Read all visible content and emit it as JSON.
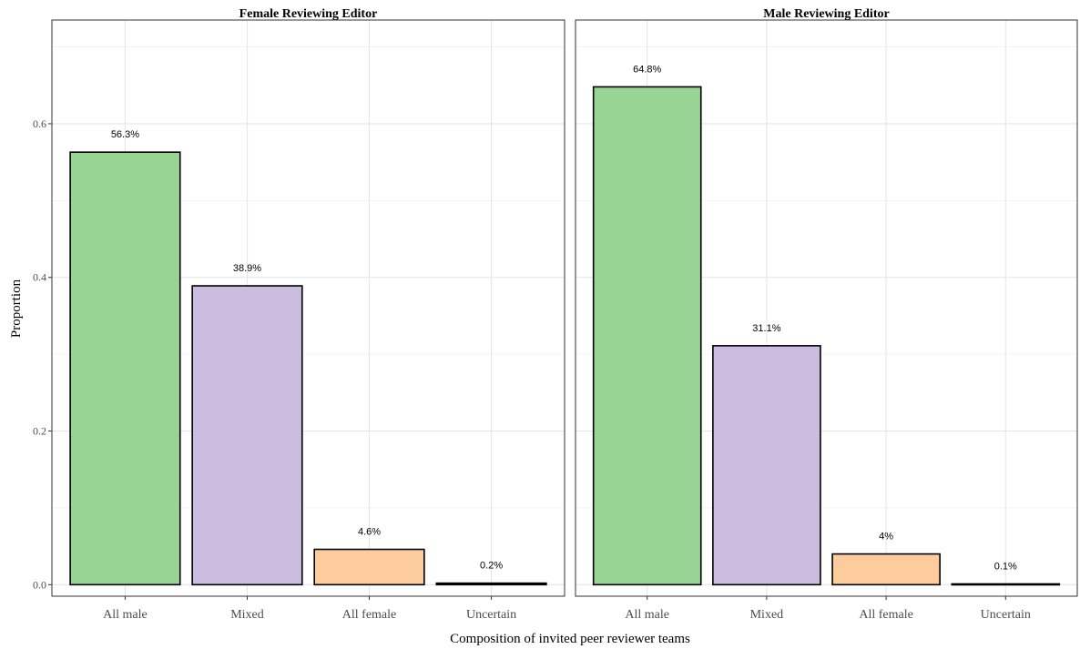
{
  "chart_data": {
    "type": "bar",
    "xlabel": "Composition of invited peer reviewer teams",
    "ylabel": "Proportion",
    "ylim": [
      -0.015,
      0.735
    ],
    "y_ticks": [
      0.0,
      0.2,
      0.4,
      0.6
    ],
    "y_tick_labels": [
      "0.0",
      "0.2",
      "0.4",
      "0.6"
    ],
    "grid": true,
    "categories": [
      "All male",
      "Mixed",
      "All female",
      "Uncertain"
    ],
    "category_colors": [
      "#98d494",
      "#cbbde0",
      "#fccc9c",
      "#000000"
    ],
    "facets": [
      {
        "title": "Female Reviewing Editor",
        "values": [
          0.563,
          0.389,
          0.046,
          0.002
        ],
        "labels": [
          "56.3%",
          "38.9%",
          "4.6%",
          "0.2%"
        ]
      },
      {
        "title": "Male Reviewing Editor",
        "values": [
          0.648,
          0.311,
          0.04,
          0.001
        ],
        "labels": [
          "64.8%",
          "31.1%",
          "4%",
          "0.1%"
        ]
      }
    ]
  }
}
